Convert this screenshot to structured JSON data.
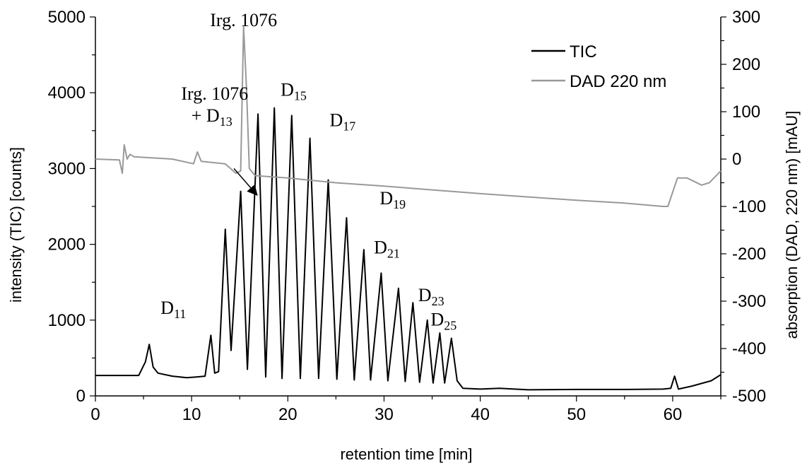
{
  "chart_data": {
    "type": "line",
    "xlabel": "retention time [min]",
    "ylabel_left": "intensity (TIC) [counts]",
    "ylabel_right": "absorption (DAD, 220 nm) [mAU]",
    "xlim": [
      0,
      65
    ],
    "ylim_left": [
      0,
      5000
    ],
    "ylim_right": [
      -500,
      300
    ],
    "x_ticks": [
      0,
      10,
      20,
      30,
      40,
      50,
      60
    ],
    "y_left_ticks": [
      0,
      1000,
      2000,
      3000,
      4000,
      5000
    ],
    "y_right_ticks": [
      -500,
      -400,
      -300,
      -200,
      -100,
      0,
      100,
      200,
      300
    ],
    "grid": false,
    "legend_position": "top-right",
    "series": [
      {
        "name": "TIC",
        "axis": "left",
        "color": "#000000",
        "points": [
          [
            0,
            270
          ],
          [
            3,
            270
          ],
          [
            4.5,
            270
          ],
          [
            5.2,
            450
          ],
          [
            5.6,
            680
          ],
          [
            6.0,
            380
          ],
          [
            6.5,
            300
          ],
          [
            8,
            260
          ],
          [
            9.5,
            240
          ],
          [
            10.5,
            250
          ],
          [
            11.4,
            260
          ],
          [
            12.0,
            800
          ],
          [
            12.4,
            300
          ],
          [
            12.8,
            320
          ],
          [
            13.5,
            2200
          ],
          [
            14.1,
            600
          ],
          [
            15.1,
            2700
          ],
          [
            15.8,
            350
          ],
          [
            16.9,
            3720
          ],
          [
            17.7,
            250
          ],
          [
            18.6,
            3800
          ],
          [
            19.4,
            230
          ],
          [
            20.4,
            3700
          ],
          [
            21.3,
            230
          ],
          [
            22.3,
            3400
          ],
          [
            23.2,
            230
          ],
          [
            24.2,
            2850
          ],
          [
            25.1,
            220
          ],
          [
            26.1,
            2350
          ],
          [
            26.9,
            210
          ],
          [
            27.9,
            1930
          ],
          [
            28.6,
            210
          ],
          [
            29.7,
            1620
          ],
          [
            30.4,
            200
          ],
          [
            31.5,
            1420
          ],
          [
            32.2,
            190
          ],
          [
            33.0,
            1230
          ],
          [
            33.7,
            180
          ],
          [
            34.5,
            1000
          ],
          [
            35.1,
            170
          ],
          [
            35.8,
            830
          ],
          [
            36.3,
            170
          ],
          [
            37.0,
            760
          ],
          [
            37.6,
            200
          ],
          [
            38.2,
            100
          ],
          [
            40,
            90
          ],
          [
            42,
            100
          ],
          [
            45,
            80
          ],
          [
            50,
            85
          ],
          [
            55,
            85
          ],
          [
            59,
            90
          ],
          [
            59.8,
            100
          ],
          [
            60.2,
            260
          ],
          [
            60.6,
            90
          ],
          [
            62,
            130
          ],
          [
            64,
            200
          ],
          [
            65,
            280
          ]
        ]
      },
      {
        "name": "DAD 220 nm",
        "axis": "right",
        "color": "#999999",
        "points": [
          [
            0,
            0
          ],
          [
            2.5,
            -2
          ],
          [
            2.8,
            -30
          ],
          [
            3.0,
            30
          ],
          [
            3.3,
            0
          ],
          [
            3.6,
            10
          ],
          [
            4,
            5
          ],
          [
            8,
            0
          ],
          [
            10.2,
            -10
          ],
          [
            10.6,
            15
          ],
          [
            11.0,
            -5
          ],
          [
            13.5,
            -10
          ],
          [
            14.6,
            -30
          ],
          [
            15.1,
            -25
          ],
          [
            15.4,
            280
          ],
          [
            15.7,
            150
          ],
          [
            16.0,
            -20
          ],
          [
            16.6,
            -35
          ],
          [
            20,
            -40
          ],
          [
            25,
            -50
          ],
          [
            30,
            -57
          ],
          [
            35,
            -65
          ],
          [
            40,
            -73
          ],
          [
            45,
            -80
          ],
          [
            50,
            -87
          ],
          [
            55,
            -93
          ],
          [
            59,
            -100
          ],
          [
            59.5,
            -100
          ],
          [
            60.5,
            -40
          ],
          [
            61.5,
            -40
          ],
          [
            63.0,
            -55
          ],
          [
            63.8,
            -50
          ],
          [
            65,
            -25
          ]
        ]
      }
    ],
    "annotations": [
      {
        "text": "Irg. 1076",
        "x": 15.4,
        "y": 4880,
        "anchor": "middle"
      },
      {
        "text": "Irg. 1076",
        "x": 12.4,
        "y": 3910,
        "anchor": "middle"
      },
      {
        "text": "+ D",
        "sub": "13",
        "x": 12.1,
        "y": 3620,
        "anchor": "middle"
      },
      {
        "text": "D",
        "sub": "15",
        "x": 20.6,
        "y": 3960,
        "anchor": "middle"
      },
      {
        "text": "D",
        "sub": "17",
        "x": 25.7,
        "y": 3560,
        "anchor": "middle"
      },
      {
        "text": "D",
        "sub": "19",
        "x": 30.9,
        "y": 2530,
        "anchor": "middle"
      },
      {
        "text": "D",
        "sub": "21",
        "x": 30.3,
        "y": 1880,
        "anchor": "middle"
      },
      {
        "text": "D",
        "sub": "23",
        "x": 34.9,
        "y": 1250,
        "anchor": "middle"
      },
      {
        "text": "D",
        "sub": "25",
        "x": 36.2,
        "y": 930,
        "anchor": "middle"
      },
      {
        "text": "D",
        "sub": "11",
        "x": 8.1,
        "y": 1080,
        "anchor": "middle"
      }
    ],
    "arrow": {
      "from": [
        14.4,
        3000
      ],
      "to": [
        16.8,
        2650
      ]
    }
  }
}
